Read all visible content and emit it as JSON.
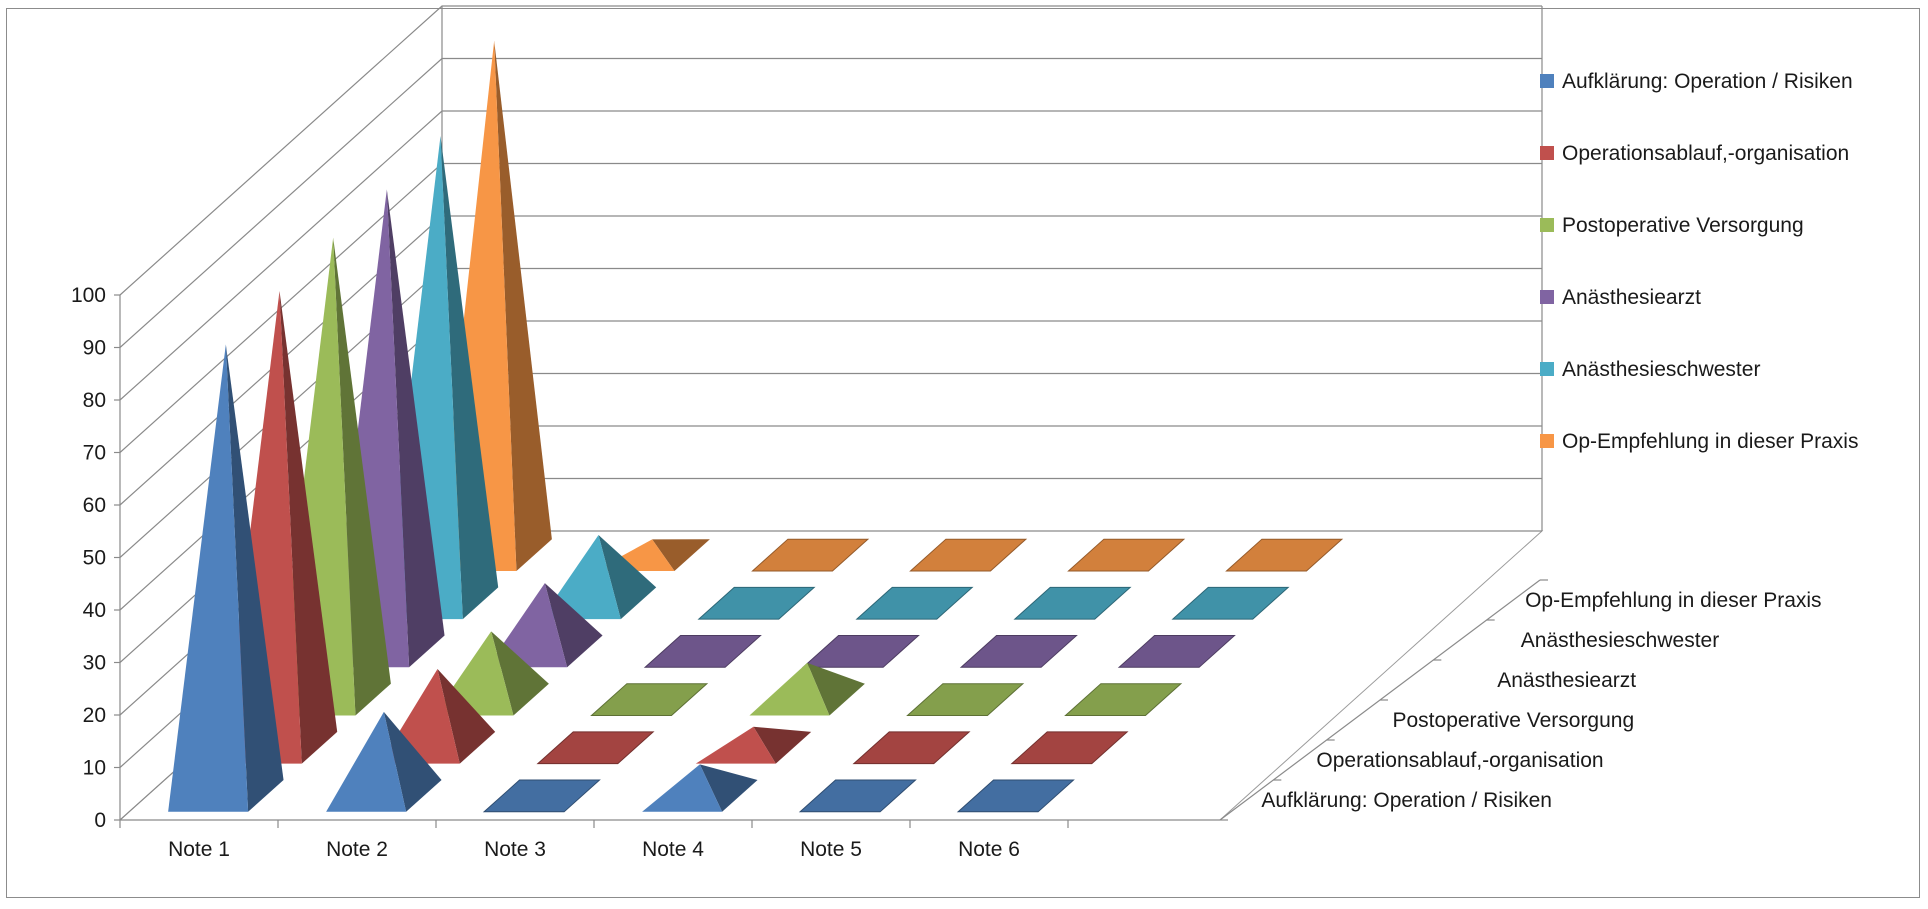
{
  "chart_data": {
    "type": "bar",
    "subtype": "3d-pyramid",
    "title": "",
    "xlabel": "",
    "ylabel": "",
    "ylim": [
      0,
      100
    ],
    "yticks": [
      0,
      10,
      20,
      30,
      40,
      50,
      60,
      70,
      80,
      90,
      100
    ],
    "categories": [
      "Note 1",
      "Note 2",
      "Note 3",
      "Note 4",
      "Note 5",
      "Note 6"
    ],
    "grid": true,
    "legend_position": "right",
    "series": [
      {
        "name": "Aufklärung: Operation / Risiken",
        "color": "#4f81bd",
        "values": [
          86,
          16,
          0,
          6,
          0,
          0
        ]
      },
      {
        "name": "Operationsablauf,-organisation",
        "color": "#c0504d",
        "values": [
          87,
          15,
          0,
          4,
          0,
          0
        ]
      },
      {
        "name": "Postoperative Versorgung",
        "color": "#9bbb59",
        "values": [
          88,
          13,
          0,
          7,
          0,
          0
        ]
      },
      {
        "name": "Anästhesiearzt",
        "color": "#8064a2",
        "values": [
          88,
          13,
          0,
          0,
          0,
          0
        ]
      },
      {
        "name": "Anästhesieschwester",
        "color": "#4bacc6",
        "values": [
          89,
          13,
          0,
          0,
          0,
          0
        ]
      },
      {
        "name": "Op-Empfehlung in dieser Praxis",
        "color": "#f79646",
        "values": [
          98,
          3,
          0,
          0,
          0,
          0
        ]
      }
    ],
    "depth_axis_labels": [
      "Aufklärung: Operation / Risiken",
      "Operationsablauf,-organisation",
      "Postoperative Versorgung",
      "Anästhesiearzt",
      "Anästhesieschwester",
      "Op-Empfehlung in dieser Praxis"
    ]
  }
}
